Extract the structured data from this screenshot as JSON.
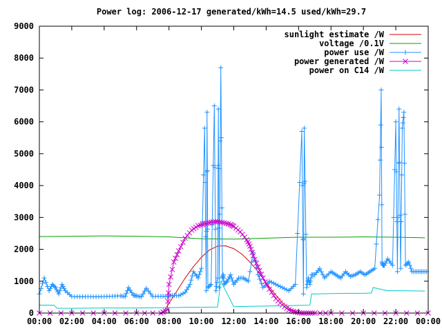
{
  "chart_data": {
    "type": "line",
    "title": "Power log: 2006-12-17 generated/kWh=14.5 used/kWh=29.7",
    "xlabel": "",
    "ylabel": "",
    "xlim": [
      0,
      24
    ],
    "ylim": [
      0,
      9000
    ],
    "x_ticks": [
      "00:00",
      "02:00",
      "04:00",
      "06:00",
      "08:00",
      "10:00",
      "12:00",
      "14:00",
      "16:00",
      "18:00",
      "20:00",
      "22:00",
      "00:00"
    ],
    "y_ticks": [
      "0",
      "1000",
      "2000",
      "3000",
      "4000",
      "5000",
      "6000",
      "7000",
      "8000",
      "9000"
    ],
    "grid": false,
    "legend_position": "top-right",
    "series": [
      {
        "name": "sunlight estimate /W",
        "color": "#cc0000",
        "marker": "none",
        "x": [
          7.6,
          8,
          8.5,
          9,
          9.5,
          10,
          10.5,
          11,
          11.5,
          12,
          12.5,
          13,
          13.5,
          14,
          14.5,
          15,
          15.5,
          16,
          16.3
        ],
        "y": [
          0,
          300,
          700,
          1100,
          1450,
          1750,
          1980,
          2100,
          2110,
          2020,
          1850,
          1600,
          1300,
          950,
          620,
          320,
          120,
          20,
          0
        ]
      },
      {
        "name": "voltage /0.1V",
        "color": "#00a000",
        "marker": "none",
        "x": [
          0,
          2,
          4,
          6,
          8,
          10,
          12,
          14,
          16,
          18,
          20,
          22,
          23.8
        ],
        "y": [
          2400,
          2410,
          2420,
          2410,
          2390,
          2330,
          2320,
          2350,
          2380,
          2380,
          2390,
          2380,
          2360
        ]
      },
      {
        "name": "power use /W",
        "color": "#1e90ff",
        "marker": "plus",
        "x": [
          0,
          0.3,
          0.6,
          0.8,
          1,
          1.2,
          1.4,
          1.6,
          2,
          2.5,
          3,
          3.5,
          4,
          4.5,
          5,
          5.3,
          5.5,
          5.8,
          6,
          6.3,
          6.6,
          7,
          7.5,
          7.9,
          8.2,
          8.6,
          9,
          9.3,
          9.5,
          9.8,
          10,
          10.2,
          10.3,
          10.35,
          10.4,
          10.6,
          10.8,
          10.9,
          11,
          11.05,
          11.1,
          11.2,
          11.3,
          11.35,
          11.4,
          11.6,
          11.8,
          12,
          12.3,
          12.6,
          12.9,
          13.2,
          13.5,
          13.8,
          14.2,
          14.6,
          15,
          15.4,
          15.8,
          16.2,
          16.3,
          16.35,
          16.5,
          16.6,
          16.7,
          16.8,
          17,
          17.3,
          17.6,
          18,
          18.3,
          18.6,
          18.9,
          19.2,
          19.5,
          19.8,
          20.1,
          20.4,
          20.7,
          21,
          21.1,
          21.15,
          21.2,
          21.3,
          21.5,
          21.8,
          22,
          22.1,
          22.2,
          22.3,
          22.4,
          22.5,
          22.6,
          22.8,
          23,
          23.3,
          23.6,
          23.9
        ],
        "y": [
          600,
          1100,
          700,
          900,
          800,
          600,
          900,
          700,
          520,
          510,
          520,
          510,
          520,
          530,
          540,
          520,
          800,
          560,
          540,
          510,
          780,
          520,
          530,
          520,
          560,
          540,
          650,
          900,
          1300,
          1100,
          1400,
          5800,
          700,
          6300,
          800,
          900,
          6500,
          700,
          1100,
          6400,
          800,
          7700,
          1100,
          1200,
          900,
          1000,
          1200,
          900,
          1100,
          1100,
          1000,
          1900,
          1200,
          800,
          1000,
          900,
          800,
          700,
          900,
          5700,
          600,
          5800,
          800,
          1100,
          900,
          1200,
          1200,
          1400,
          1100,
          1300,
          1200,
          1100,
          1300,
          1150,
          1200,
          1300,
          1200,
          1300,
          1400,
          3700,
          7000,
          1600,
          1500,
          1500,
          1700,
          1500,
          6000,
          1300,
          6400,
          1400,
          5800,
          6300,
          1500,
          1600,
          1300,
          1300,
          1300,
          1300
        ]
      },
      {
        "name": "power generated /W",
        "color": "#cc00cc",
        "marker": "cross",
        "x": [
          0,
          2,
          4,
          6,
          7.5,
          7.9,
          8,
          8.3,
          8.6,
          9,
          9.4,
          9.8,
          10.2,
          10.6,
          11,
          11.4,
          11.8,
          12,
          12.4,
          12.8,
          13,
          13.2,
          13.5,
          13.8,
          14.2,
          14.6,
          15,
          15.4,
          15.8,
          16.2,
          16.6,
          17,
          18,
          20,
          22,
          24
        ],
        "y": [
          0,
          0,
          0,
          0,
          0,
          100,
          900,
          1600,
          1950,
          2350,
          2600,
          2740,
          2800,
          2850,
          2870,
          2830,
          2780,
          2720,
          2550,
          2300,
          2100,
          1800,
          1450,
          1100,
          750,
          450,
          250,
          100,
          30,
          0,
          0,
          0,
          0,
          0,
          0,
          0
        ]
      },
      {
        "name": "power on C14 /W",
        "color": "#00c8c8",
        "marker": "none",
        "x": [
          0,
          0.9,
          1.1,
          2,
          4,
          6,
          8,
          9,
          10,
          11,
          11.2,
          12,
          13,
          14,
          15,
          16,
          16.7,
          16.8,
          17,
          18,
          19,
          20,
          20.5,
          20.6,
          21.5,
          22,
          22.5,
          23.8
        ],
        "y": [
          250,
          250,
          150,
          150,
          160,
          160,
          170,
          180,
          180,
          190,
          1000,
          200,
          210,
          220,
          230,
          240,
          250,
          600,
          600,
          610,
          620,
          620,
          630,
          800,
          700,
          700,
          700,
          690
        ]
      }
    ]
  }
}
